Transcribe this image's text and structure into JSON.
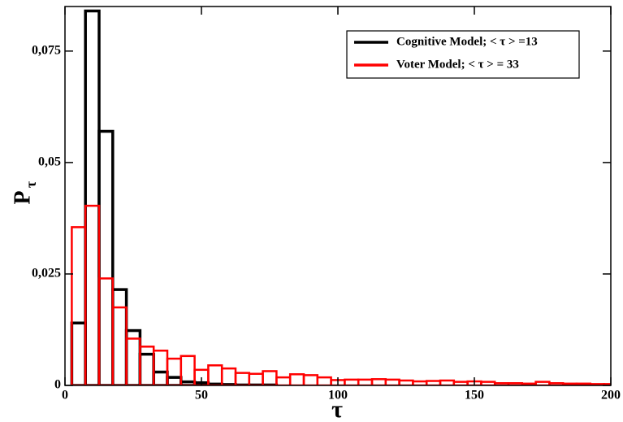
{
  "chart_data": {
    "type": "histogram",
    "xlabel": "τ",
    "ylabel": "P",
    "ylabel_subscript": "τ",
    "bins": [
      2.5,
      7.5,
      12.5,
      17.5,
      22.5,
      27.5,
      32.5,
      37.5,
      42.5,
      47.5,
      52.5,
      57.5,
      62.5,
      67.5,
      72.5,
      77.5,
      82.5,
      87.5,
      92.5,
      97.5,
      102.5,
      107.5,
      112.5,
      117.5,
      122.5,
      127.5,
      132.5,
      137.5,
      142.5,
      147.5,
      152.5,
      157.5,
      162.5,
      167.5,
      172.5,
      177.5,
      182.5,
      187.5,
      192.5,
      197.5,
      202.5
    ],
    "series": [
      {
        "name": "Cognitive Model;  < τ > =13",
        "color": "#000000",
        "values": [
          0.014,
          0.084,
          0.057,
          0.0215,
          0.0123,
          0.007,
          0.003,
          0.0018,
          0.0008,
          0.0006,
          0.0003,
          0.0002,
          0.0001,
          0.0001,
          0.0001,
          0,
          0,
          0,
          0,
          0,
          0,
          0,
          0,
          0,
          0,
          0,
          0,
          0,
          0,
          0,
          0,
          0,
          0,
          0,
          0,
          0,
          0,
          0,
          0,
          0
        ]
      },
      {
        "name": "Voter Model; < τ > = 33",
        "color": "#ff0000",
        "values": [
          0.0355,
          0.0403,
          0.024,
          0.0175,
          0.0105,
          0.0087,
          0.0078,
          0.006,
          0.0066,
          0.0035,
          0.0045,
          0.0038,
          0.0028,
          0.0026,
          0.0032,
          0.0018,
          0.0025,
          0.0023,
          0.0018,
          0.0012,
          0.0013,
          0.0013,
          0.0014,
          0.0013,
          0.0011,
          0.0009,
          0.001,
          0.0011,
          0.0008,
          0.0009,
          0.0008,
          0.0005,
          0.0005,
          0.0004,
          0.0008,
          0.0005,
          0.0004,
          0.0004,
          0.0003,
          0.0003
        ]
      }
    ],
    "xlim": [
      0,
      200
    ],
    "xticks": [
      0,
      50,
      100,
      150,
      200
    ],
    "ylim": [
      0,
      0.085
    ],
    "yticks": [
      0,
      {
        "value": 0.025,
        "label": "0,025"
      },
      {
        "value": 0.05,
        "label": "0,05"
      },
      {
        "value": 0.075,
        "label": "0,075"
      }
    ],
    "legend": "upper right"
  }
}
